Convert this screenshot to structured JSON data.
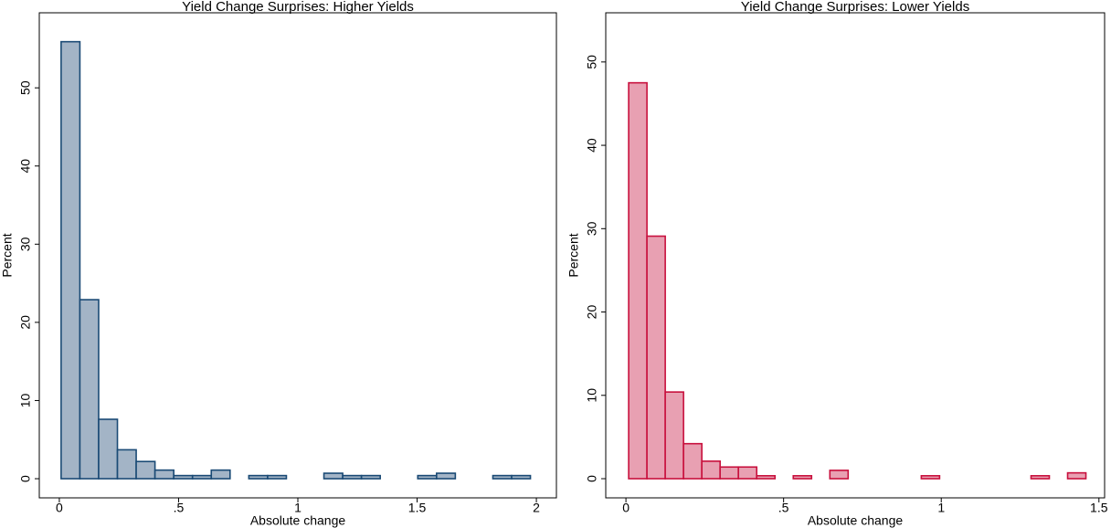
{
  "chart_data": [
    {
      "type": "histogram",
      "title": "Yield Change Surprises: Higher Yields",
      "xlabel": "Absolute change",
      "ylabel": "Percent",
      "bins": [
        0.0075,
        0.0862,
        0.1649,
        0.2436,
        0.3223,
        0.401,
        0.4797,
        0.5584,
        0.6371,
        0.7158,
        0.7945,
        0.8732,
        0.9519,
        1.0306,
        1.1093,
        1.188,
        1.2667,
        1.3454,
        1.4241,
        1.5028,
        1.5815,
        1.6602,
        1.7389,
        1.8176,
        1.8963,
        1.975
      ],
      "values": [
        55.9,
        22.9,
        7.6,
        3.7,
        2.2,
        1.1,
        0.4,
        0.4,
        1.1,
        0,
        0.4,
        0.4,
        0,
        0,
        0.7,
        0.4,
        0.4,
        0,
        0,
        0.4,
        0.7,
        0,
        0,
        0.4,
        0.4
      ],
      "color": "#a3b4c6",
      "edgecolor": "#1a4a75",
      "xlim": [
        -0.084,
        2.084
      ],
      "ylim": [
        -2.45,
        59.6
      ],
      "xticks": [
        0,
        {
          "value": 0.5,
          "label": ".5"
        },
        1,
        {
          "value": 1.5,
          "label": "1.5"
        },
        2
      ],
      "yticks": [
        0,
        10,
        20,
        30,
        40,
        50
      ]
    },
    {
      "type": "histogram",
      "title": "Yield Change Surprises: Lower Yields",
      "xlabel": "Absolute change",
      "ylabel": "Percent",
      "bins": [
        0.0087,
        0.0667,
        0.1247,
        0.1827,
        0.2407,
        0.2987,
        0.3567,
        0.4147,
        0.4727,
        0.5307,
        0.5887,
        0.6467,
        0.7047,
        0.7627,
        0.8207,
        0.8787,
        0.9367,
        0.9947,
        1.0527,
        1.1107,
        1.1687,
        1.2267,
        1.2847,
        1.3427,
        1.4007,
        1.4587
      ],
      "values": [
        47.5,
        29.1,
        10.4,
        4.2,
        2.1,
        1.4,
        1.4,
        0.35,
        0,
        0.35,
        0,
        1.0,
        0,
        0,
        0,
        0,
        0.35,
        0,
        0,
        0,
        0,
        0,
        0.35,
        0,
        0.7
      ],
      "color": "#e8a0b2",
      "edgecolor": "#c8103d",
      "xlim": [
        -0.064,
        1.518
      ],
      "ylim": [
        -2.3,
        55.9
      ],
      "xticks": [
        0,
        {
          "value": 0.5,
          "label": ".5"
        },
        1,
        {
          "value": 1.5,
          "label": "1.5"
        }
      ],
      "yticks": [
        0,
        10,
        20,
        30,
        40,
        50
      ]
    }
  ]
}
